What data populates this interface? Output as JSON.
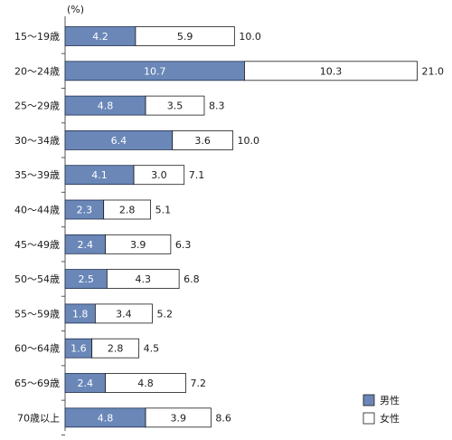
{
  "chart_data": {
    "type": "bar",
    "stacked": true,
    "orientation": "horizontal",
    "unit": "(%)",
    "categories": [
      "15～19歳",
      "20～24歳",
      "25～29歳",
      "30～34歳",
      "35～39歳",
      "40～44歳",
      "45～49歳",
      "50～54歳",
      "55～59歳",
      "60～64歳",
      "65～69歳",
      "70歳以上"
    ],
    "series": [
      {
        "name": "男性",
        "color": "#6a87b8",
        "values": [
          4.2,
          10.7,
          4.8,
          6.4,
          4.1,
          2.3,
          2.4,
          2.5,
          1.8,
          1.6,
          2.4,
          4.8
        ]
      },
      {
        "name": "女性",
        "color": "#ffffff",
        "values": [
          5.9,
          10.3,
          3.5,
          3.6,
          3.0,
          2.8,
          3.9,
          4.3,
          3.4,
          2.8,
          4.8,
          3.9
        ]
      }
    ],
    "totals": [
      "10.0",
      "21.0",
      "8.3",
      "10.0",
      "7.1",
      "5.1",
      "6.3",
      "6.8",
      "5.2",
      "4.5",
      "7.2",
      "8.6"
    ],
    "legend_position": "bottom-right"
  }
}
